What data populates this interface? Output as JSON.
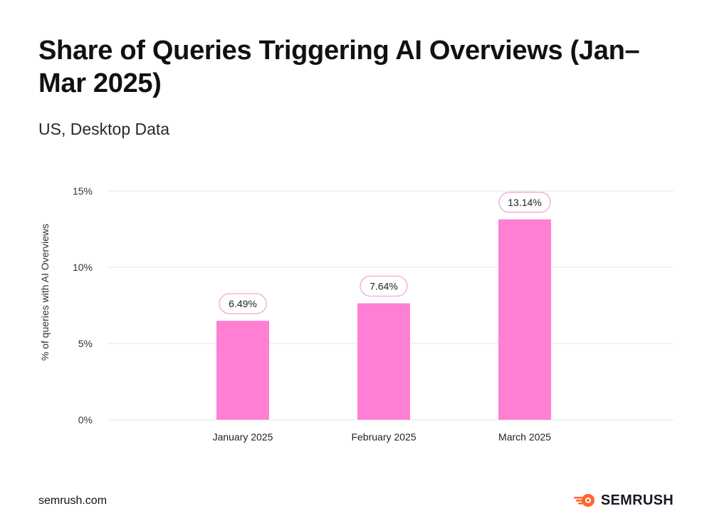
{
  "header": {
    "title": "Share of Queries Triggering AI Overviews (Jan–Mar 2025)",
    "subtitle": "US, Desktop Data"
  },
  "footer": {
    "source": "semrush.com",
    "brand": "SEMRUSH"
  },
  "colors": {
    "bar": "#ff7fd5",
    "label_border": "#f3a6d8",
    "grid": "#e6e6e6",
    "brand_accent": "#ff642d"
  },
  "icons": {
    "brand_logo": "semrush-fireball-icon"
  },
  "chart_data": {
    "type": "bar",
    "title": "Share of Queries Triggering AI Overviews (Jan–Mar 2025)",
    "subtitle": "US, Desktop Data",
    "xlabel": "",
    "ylabel": "% of queries with AI Overviews",
    "categories": [
      "January 2025",
      "February 2025",
      "March 2025"
    ],
    "values": [
      6.49,
      7.64,
      13.14
    ],
    "value_labels": [
      "6.49%",
      "7.64%",
      "13.14%"
    ],
    "ylim": [
      0,
      15
    ],
    "yticks": [
      0,
      5,
      10,
      15
    ],
    "ytick_labels": [
      "0%",
      "5%",
      "10%",
      "15%"
    ],
    "grid": true,
    "legend": "none"
  }
}
